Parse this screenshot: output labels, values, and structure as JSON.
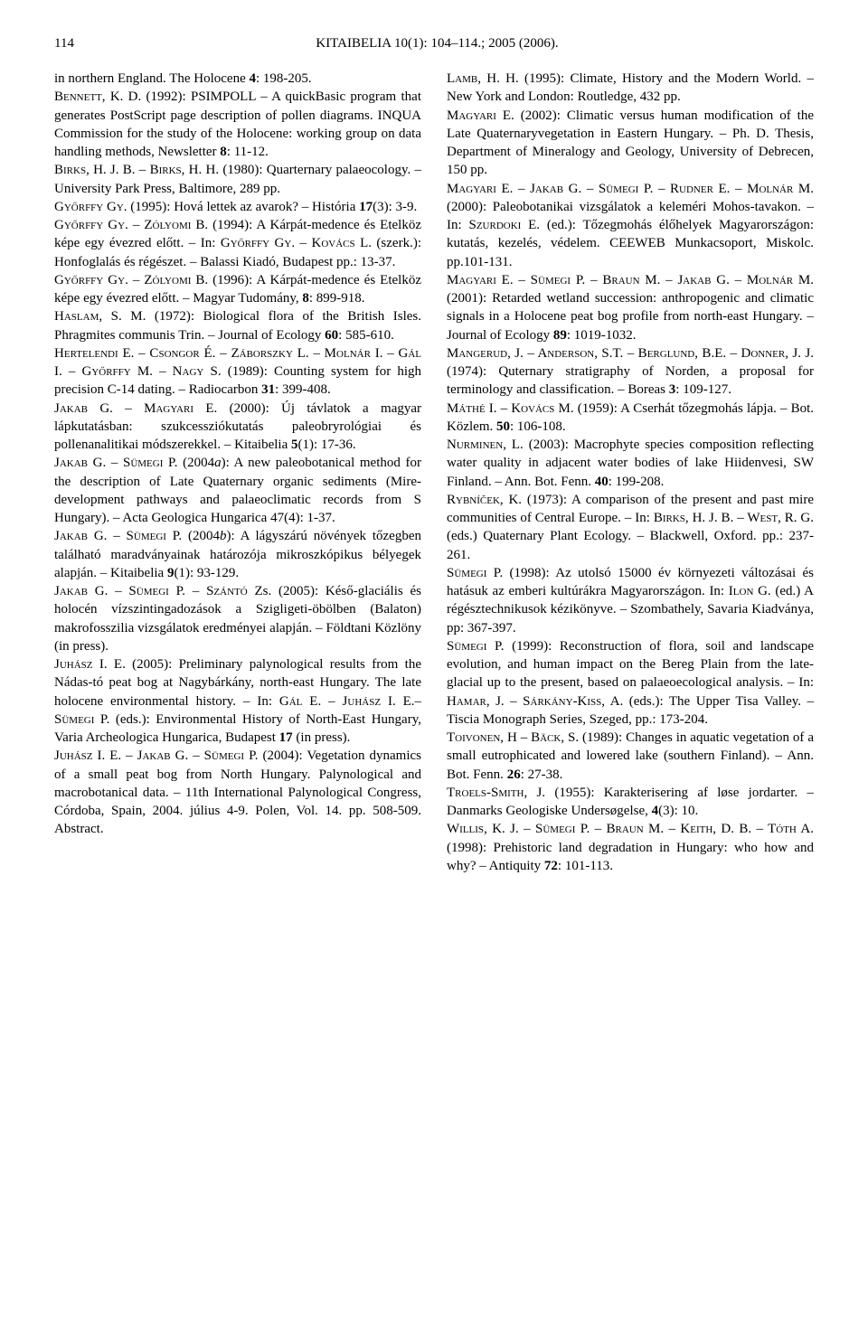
{
  "header": {
    "page_number": "114",
    "title": "KITAIBELIA 10(1): 104–114.; 2005 (2006)."
  },
  "references_left": [
    "in northern England. The Holocene <b>4</b>: 198-205.",
    "B<span class='sc'>ennett</span>, K. D. (1992): PSIMPOLL – A quickBasic program that generates PostScript page description of pollen diagrams. INQUA Commission for the study of the Holocene: working group on data handling methods, Newsletter <b>8</b>: 11-12.",
    "B<span class='sc'>irks</span>, H. J. B. – B<span class='sc'>irks</span>, H. H. (1980): Quarternary palaeocology. – University Park Press, Baltimore, 289 pp.",
    "G<span class='sc'>yőrffy</span> G<span class='sc'>y</span>. (1995): Hová lettek az avarok? – História <b>17</b>(3): 3-9.",
    "G<span class='sc'>yőrffy</span> G<span class='sc'>y</span>. – Z<span class='sc'>ólyomi</span> B. (1994): A Kárpát-medence és Etelköz képe egy évezred előtt. – In: G<span class='sc'>yőrffy</span> G<span class='sc'>y</span>. – K<span class='sc'>ovács</span> L. (szerk.): Honfoglalás és régészet. – Balassi Kiadó, Budapest pp.: 13-37.",
    "G<span class='sc'>yőrffy</span> G<span class='sc'>y</span>. – Z<span class='sc'>ólyomi</span> B. (1996): A Kárpát-medence és Etelköz képe egy évezred előtt. – Magyar Tudomány, <b>8</b>: 899-918.",
    "H<span class='sc'>aslam</span>, S. M. (1972): Biological flora of the British Isles. Phragmites communis Trin. – Journal of Ecology <b>60</b>: 585-610.",
    "H<span class='sc'>ertelendi</span> E. – C<span class='sc'>songor</span> É. – Z<span class='sc'>áborszky</span> L. – M<span class='sc'>olnár</span> I. – G<span class='sc'>ál</span> I. – G<span class='sc'>yőrffy</span> M. – N<span class='sc'>agy</span> S. (1989): Counting system for high precision C-14 dating. – Radiocarbon <b>31</b>: 399-408.",
    "J<span class='sc'>akab</span> G. – M<span class='sc'>agyari</span> E. (2000): Új távlatok a magyar lápkutatásban: szukcessziókutatás paleobryrológiai és pollenanalitikai módszerekkel. – Kitaibelia <b>5</b>(1): 17-36.",
    "J<span class='sc'>akab</span> G. – S<span class='sc'>ümegi</span> P. (2004<i>a</i>): A new paleobotanical method for the description of Late Quaternary organic sediments (Mire-development pathways and palaeoclimatic records from S Hungary). – Acta Geologica Hungarica 47(4): 1-37.",
    "J<span class='sc'>akab</span> G. – S<span class='sc'>ümegi</span> P. (2004<i>b</i>): A lágyszárú növények tőzegben található maradványainak határozója mikroszkópikus bélyegek alapján. – Kitaibelia <b>9</b>(1): 93-129.",
    "J<span class='sc'>akab</span> G. – S<span class='sc'>ümegi</span> P. – S<span class='sc'>zántó</span> Zs. (2005): Késő-glaciális és holocén vízszintingadozások a Szigligeti-öbölben (Balaton) makrofosszilia vizsgálatok eredményei alapján. – Földtani Közlöny (in press).",
    "J<span class='sc'>uhász</span> I. E. (2005): Preliminary palynological results from the Nádas-tó peat bog at Nagybárkány, north-east Hungary. The late holocene environmental history. – In: G<span class='sc'>ál</span> E. – J<span class='sc'>uhász</span> I. E.– S<span class='sc'>ümegi</span> P. (eds.): Environmental History of North-East Hungary, Varia Archeologica Hungarica, Budapest <b>17</b> (in press).",
    "J<span class='sc'>uhász</span> I. E. – J<span class='sc'>akab</span> G. – S<span class='sc'>ümegi</span> P. (2004): Vegetation dynamics of a small peat bog from North Hungary. Palynological and macrobotanical data. – 11th International Palynological Congress, Córdoba, Spain, 2004. július 4-9. Polen, Vol. 14. pp. 508-509. Abstract."
  ],
  "references_right": [
    "L<span class='sc'>amb</span>, H. H. (1995): Climate, History and the Modern World. – New York and London: Routledge, 432 pp.",
    "M<span class='sc'>agyari</span> E. (2002): Climatic versus human modification of the Late Quaternaryvegetation in Eastern Hungary. – Ph. D. Thesis, Department of Mineralogy and Geology, University of Debrecen, 150 pp.",
    "M<span class='sc'>agyari</span> E. – J<span class='sc'>akab</span> G. – S<span class='sc'>ümegi</span> P. – R<span class='sc'>udner</span> E. – M<span class='sc'>olnár</span> M. (2000): Paleobotanikai vizsgálatok a keleméri Mohos-tavakon. – In: S<span class='sc'>zurdoki</span> E. (ed.): Tőzegmohás élőhelyek Magyarországon: kutatás, kezelés, védelem. CEEWEB Munkacsoport, Miskolc. pp.101-131.",
    "M<span class='sc'>agyari</span> E. – S<span class='sc'>ümegi</span> P. – B<span class='sc'>raun</span> M. – J<span class='sc'>akab</span> G. – M<span class='sc'>olnár</span> M. (2001): Retarded wetland succession: anthropogenic and climatic signals in a Holocene peat bog profile from north-east Hungary. – Journal of Ecology <b>89</b>: 1019-1032.",
    "M<span class='sc'>angerud</span>, J. – A<span class='sc'>nderson</span>, S.T. – B<span class='sc'>erglund</span>, B.E. – D<span class='sc'>onner</span>, J. J. (1974): Quternary stratigraphy of Norden, a proposal for terminology and classification. – Boreas <b>3</b>: 109-127.",
    "M<span class='sc'>áthé</span> I. – K<span class='sc'>ovács</span> M. (1959): A Cserhát tőzegmohás lápja. – Bot. Közlem. <b>50</b>: 106-108.",
    "N<span class='sc'>urminen</span>, L. (2003): Macrophyte species composition reflecting water quality in adjacent water bodies of lake Hiidenvesi, SW Finland. – Ann. Bot. Fenn. <b>40</b>: 199-208.",
    "R<span class='sc'>ybníček</span>, K. (1973): A comparison of the present and past mire communities of Central Europe. – In: B<span class='sc'>irks</span>, H. J. B. – W<span class='sc'>est</span>, R. G. (eds.) Quaternary Plant Ecology. – Blackwell, Oxford. pp.: 237-261.",
    "S<span class='sc'>ümegi</span> P. (1998): Az utolsó 15000 év környezeti változásai és hatásuk az emberi kultúrákra Magyarországon. In: I<span class='sc'>lon</span> G. (ed.) A régésztechnikusok kézikönyve. – Szombathely, Savaria Kiadványa, pp: 367-397.",
    "S<span class='sc'>ümegi</span> P. (1999): Reconstruction of flora, soil and landscape evolution, and human impact on the Bereg Plain from the late-glacial up to the present, based on palaeoecological analysis. – In: H<span class='sc'>amar</span>, J. – S<span class='sc'>árkány</span>-K<span class='sc'>iss</span>, A. (eds.): The Upper Tisa Valley. – Tiscia Monograph Series, Szeged, pp.: 173-204.",
    "T<span class='sc'>oivonen</span>, H – B<span class='sc'>äck</span>, S. (1989): Changes in aquatic vegetation of a small eutrophicated and lowered lake (southern Finland). – Ann. Bot. Fenn. <b>26</b>: 27-38.",
    "T<span class='sc'>roels</span>-S<span class='sc'>mith</span>, J. (1955): Karakterisering af løse jordarter. – Danmarks Geologiske Undersøgelse, <b>4</b>(3): 10.",
    "W<span class='sc'>illis</span>, K. J. – S<span class='sc'>ümegi</span> P. – B<span class='sc'>raun</span> M. – K<span class='sc'>eith</span>, D. B. – T<span class='sc'>óth</span> A. (1998): Prehistoric land degradation in Hungary: who how and why? – Antiquity <b>72</b>: 101-113."
  ]
}
